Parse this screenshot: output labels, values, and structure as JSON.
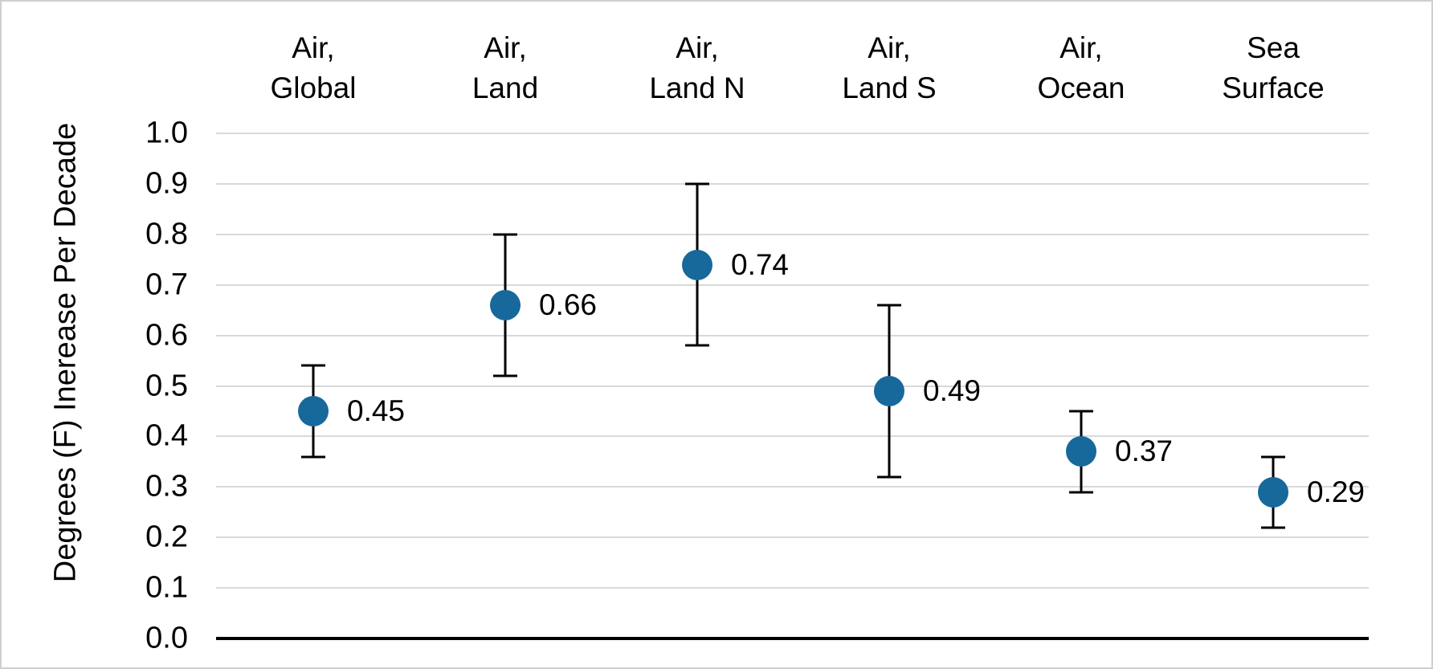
{
  "chart_data": {
    "type": "scatter",
    "title": "",
    "xlabel": "",
    "ylabel": "Degrees (F) Inerease Per Decade",
    "categories": [
      [
        "Air,",
        "Global"
      ],
      [
        "Air,",
        "Land"
      ],
      [
        "Air,",
        "Land N"
      ],
      [
        "Air,",
        "Land S"
      ],
      [
        "Air,",
        "Ocean"
      ],
      [
        "Sea",
        "Surface"
      ]
    ],
    "values": [
      0.45,
      0.66,
      0.74,
      0.49,
      0.37,
      0.29
    ],
    "point_labels": [
      "0.45",
      "0.66",
      "0.74",
      "0.49",
      "0.37",
      "0.29"
    ],
    "error_low": [
      0.36,
      0.52,
      0.58,
      0.32,
      0.29,
      0.22
    ],
    "error_high": [
      0.54,
      0.8,
      0.9,
      0.66,
      0.45,
      0.36
    ],
    "ylim": [
      0.0,
      1.0
    ],
    "ytick_step": 0.1,
    "grid": true,
    "legend_position": "none",
    "colors": {
      "marker": "#17689B",
      "gridline": "#D9D9D9",
      "axis": "#000000",
      "text": "#000000",
      "frame": "#CFCFCF"
    }
  }
}
